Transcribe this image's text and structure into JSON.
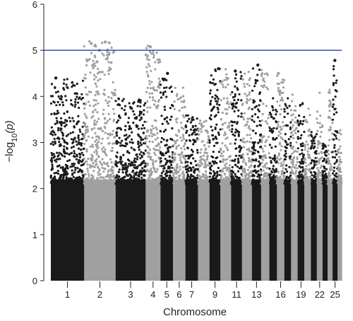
{
  "chart_data": {
    "type": "scatter",
    "title": "",
    "xlabel": "Chromosome",
    "ylabel": "−log10(p)",
    "ylabel_parts": {
      "prefix": "−log",
      "sub": "10",
      "suffix": "(p)"
    },
    "ylim": [
      0,
      6
    ],
    "yticks": [
      0,
      1,
      2,
      3,
      4,
      5,
      6
    ],
    "threshold": {
      "y": 5,
      "color": "#3b4ba8"
    },
    "colors": {
      "odd": "#1a1a1a",
      "even": "#a0a0a0"
    },
    "grid": false,
    "legend": "none",
    "chromosomes": [
      {
        "chr": "1",
        "label": "1",
        "max": 4.4
      },
      {
        "chr": "2",
        "label": "2",
        "max": 5.2
      },
      {
        "chr": "3",
        "label": "3",
        "max": 4.0
      },
      {
        "chr": "4",
        "label": "4",
        "max": 5.1
      },
      {
        "chr": "5",
        "label": "5",
        "max": 4.5
      },
      {
        "chr": "6",
        "label": "6",
        "max": 4.2
      },
      {
        "chr": "7",
        "label": "7",
        "max": 3.6
      },
      {
        "chr": "8",
        "label": "",
        "max": 3.5
      },
      {
        "chr": "9",
        "label": "9",
        "max": 4.6
      },
      {
        "chr": "10",
        "label": "",
        "max": 4.6
      },
      {
        "chr": "11",
        "label": "11",
        "max": 4.6
      },
      {
        "chr": "12",
        "label": "",
        "max": 4.6
      },
      {
        "chr": "13",
        "label": "13",
        "max": 4.7
      },
      {
        "chr": "14",
        "label": "",
        "max": 4.6
      },
      {
        "chr": "15",
        "label": "",
        "max": 4.0
      },
      {
        "chr": "16",
        "label": "16",
        "max": 4.5
      },
      {
        "chr": "17",
        "label": "",
        "max": 4.0
      },
      {
        "chr": "18",
        "label": "",
        "max": 4.1
      },
      {
        "chr": "19",
        "label": "19",
        "max": 3.9
      },
      {
        "chr": "20",
        "label": "",
        "max": 3.8
      },
      {
        "chr": "21",
        "label": "",
        "max": 3.3
      },
      {
        "chr": "22",
        "label": "22",
        "max": 4.1
      },
      {
        "chr": "23",
        "label": "",
        "max": 3.0
      },
      {
        "chr": "24",
        "label": "",
        "max": 4.2
      },
      {
        "chr": "25",
        "label": "25",
        "max": 4.8
      },
      {
        "chr": "26",
        "label": "",
        "max": 3.4
      }
    ],
    "notable_points": [
      {
        "chr": "1",
        "y": 4.4
      },
      {
        "chr": "2",
        "y": 4.75
      },
      {
        "chr": "2",
        "y": 5.18
      },
      {
        "chr": "2",
        "y": 5.15
      },
      {
        "chr": "2",
        "y": 5.0
      },
      {
        "chr": "2",
        "y": 4.9
      },
      {
        "chr": "4",
        "y": 5.08
      },
      {
        "chr": "5",
        "y": 4.5
      },
      {
        "chr": "9",
        "y": 4.6
      },
      {
        "chr": "11",
        "y": 4.55
      },
      {
        "chr": "13",
        "y": 4.68
      },
      {
        "chr": "16",
        "y": 4.5
      },
      {
        "chr": "25",
        "y": 4.78
      }
    ]
  }
}
